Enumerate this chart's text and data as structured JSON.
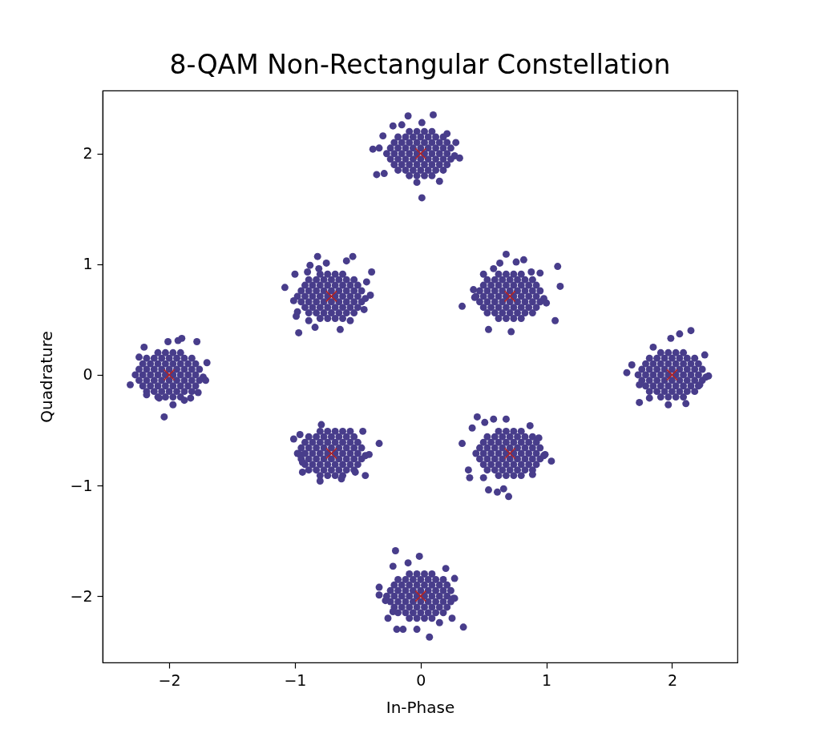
{
  "chart_data": {
    "type": "scatter",
    "title": "8-QAM Non-Rectangular Constellation",
    "xlabel": "In-Phase",
    "ylabel": "Quadrature",
    "xlim": [
      -2.53,
      2.52
    ],
    "ylim": [
      -2.6,
      2.57
    ],
    "xticks": [
      -2,
      -1,
      0,
      1,
      2
    ],
    "yticks": [
      -2,
      -1,
      0,
      1,
      2
    ],
    "marker": "circle",
    "series": [
      {
        "color": "#483d8b",
        "x": [
          -0.09,
          -0.03,
          0.03,
          0.09,
          -0.18,
          -0.12,
          -0.06,
          0,
          0.06,
          0.12,
          0.18,
          -0.21,
          -0.15,
          -0.09,
          -0.03,
          0.03,
          0.09,
          0.15,
          0.21,
          -0.24,
          -0.18,
          -0.12,
          -0.06,
          0,
          0.06,
          0.12,
          0.18,
          0.24,
          -0.21,
          -0.15,
          -0.09,
          -0.03,
          0.03,
          0.09,
          0.15,
          0.21,
          -0.24,
          -0.18,
          -0.12,
          -0.06,
          0,
          0.06,
          0.12,
          0.18,
          0.24,
          -0.21,
          -0.15,
          -0.09,
          -0.03,
          0.03,
          0.09,
          0.15,
          0.21,
          -0.18,
          -0.12,
          -0.06,
          0,
          0.06,
          0.12,
          0.18,
          -0.09,
          -0.03,
          0.03,
          0.09,
          -0.27,
          0.27,
          -0.1,
          0.1,
          0.01,
          -0.22,
          -0.15,
          -0.3,
          -0.38,
          -0.33,
          0.21,
          0.28,
          0.31,
          -0.35,
          -0.29,
          -0.03,
          0.01,
          0.15
        ],
        "values": [
          2.2,
          2.2,
          2.2,
          2.2,
          2.15,
          2.15,
          2.15,
          2.15,
          2.15,
          2.15,
          2.15,
          2.1,
          2.1,
          2.1,
          2.1,
          2.1,
          2.1,
          2.1,
          2.1,
          2.05,
          2.05,
          2.05,
          2.05,
          2.05,
          2.05,
          2.05,
          2.05,
          2.05,
          2,
          2,
          2,
          2,
          2,
          2,
          2,
          2,
          1.95,
          1.95,
          1.95,
          1.95,
          1.95,
          1.95,
          1.95,
          1.95,
          1.95,
          1.9,
          1.9,
          1.9,
          1.9,
          1.9,
          1.9,
          1.9,
          1.9,
          1.85,
          1.85,
          1.85,
          1.85,
          1.85,
          1.85,
          1.85,
          1.8,
          1.8,
          1.8,
          1.8,
          2,
          1.98,
          2.34,
          2.35,
          2.28,
          2.25,
          2.26,
          2.16,
          2.04,
          2.05,
          2.18,
          2.1,
          1.96,
          1.81,
          1.82,
          1.74,
          1.6,
          1.75
        ]
      },
      {
        "color": "#483d8b",
        "x": [
          -0.8,
          -0.74,
          -0.68,
          -0.62,
          -0.89,
          -0.83,
          -0.77,
          -0.71,
          -0.65,
          -0.59,
          -0.53,
          -0.92,
          -0.86,
          -0.8,
          -0.74,
          -0.68,
          -0.62,
          -0.56,
          -0.5,
          -0.95,
          -0.89,
          -0.83,
          -0.77,
          -0.71,
          -0.65,
          -0.59,
          -0.53,
          -0.47,
          -0.92,
          -0.86,
          -0.8,
          -0.74,
          -0.68,
          -0.62,
          -0.56,
          -0.5,
          -0.95,
          -0.89,
          -0.83,
          -0.77,
          -0.71,
          -0.65,
          -0.59,
          -0.53,
          -0.47,
          -0.92,
          -0.86,
          -0.8,
          -0.74,
          -0.68,
          -0.62,
          -0.56,
          -0.5,
          -0.89,
          -0.83,
          -0.77,
          -0.71,
          -0.65,
          -0.59,
          -0.53,
          -0.8,
          -0.74,
          -0.68,
          -0.62,
          -0.98,
          -0.44,
          -0.82,
          -0.75,
          -0.54,
          -0.59,
          -0.88,
          -0.81,
          -0.9,
          -1.0,
          -0.39,
          -1.08,
          -0.43,
          -0.4,
          -1.01,
          -0.45,
          -0.98,
          -0.99,
          -0.56,
          -0.89,
          -0.84,
          -0.64,
          -0.97
        ],
        "values": [
          0.91,
          0.91,
          0.91,
          0.91,
          0.86,
          0.86,
          0.86,
          0.86,
          0.86,
          0.86,
          0.86,
          0.81,
          0.81,
          0.81,
          0.81,
          0.81,
          0.81,
          0.81,
          0.81,
          0.76,
          0.76,
          0.76,
          0.76,
          0.76,
          0.76,
          0.76,
          0.76,
          0.76,
          0.71,
          0.71,
          0.71,
          0.71,
          0.71,
          0.71,
          0.71,
          0.71,
          0.66,
          0.66,
          0.66,
          0.66,
          0.66,
          0.66,
          0.66,
          0.66,
          0.66,
          0.61,
          0.61,
          0.61,
          0.61,
          0.61,
          0.61,
          0.61,
          0.61,
          0.56,
          0.56,
          0.56,
          0.56,
          0.56,
          0.56,
          0.56,
          0.51,
          0.51,
          0.51,
          0.51,
          0.71,
          0.69,
          1.07,
          1.01,
          1.07,
          1.03,
          0.99,
          0.96,
          0.93,
          0.91,
          0.93,
          0.79,
          0.84,
          0.72,
          0.67,
          0.59,
          0.57,
          0.53,
          0.49,
          0.49,
          0.43,
          0.41,
          0.38
        ]
      },
      {
        "color": "#483d8b",
        "x": [
          0.62,
          0.68,
          0.74,
          0.8,
          0.53,
          0.59,
          0.65,
          0.71,
          0.77,
          0.83,
          0.89,
          0.5,
          0.56,
          0.62,
          0.68,
          0.74,
          0.8,
          0.86,
          0.92,
          0.47,
          0.53,
          0.59,
          0.65,
          0.71,
          0.77,
          0.83,
          0.89,
          0.95,
          0.5,
          0.56,
          0.62,
          0.68,
          0.74,
          0.8,
          0.86,
          0.92,
          0.47,
          0.53,
          0.59,
          0.65,
          0.71,
          0.77,
          0.83,
          0.89,
          0.95,
          0.5,
          0.56,
          0.62,
          0.68,
          0.74,
          0.8,
          0.86,
          0.92,
          0.53,
          0.59,
          0.65,
          0.71,
          0.77,
          0.83,
          0.89,
          0.62,
          0.68,
          0.74,
          0.8,
          0.44,
          0.98,
          0.68,
          0.82,
          0.76,
          0.63,
          0.58,
          0.5,
          1.09,
          0.95,
          0.88,
          0.42,
          0.33,
          1.11,
          1.0,
          1.07,
          0.54,
          0.72,
          0.43
        ],
        "values": [
          0.91,
          0.91,
          0.91,
          0.91,
          0.86,
          0.86,
          0.86,
          0.86,
          0.86,
          0.86,
          0.86,
          0.81,
          0.81,
          0.81,
          0.81,
          0.81,
          0.81,
          0.81,
          0.81,
          0.76,
          0.76,
          0.76,
          0.76,
          0.76,
          0.76,
          0.76,
          0.76,
          0.76,
          0.71,
          0.71,
          0.71,
          0.71,
          0.71,
          0.71,
          0.71,
          0.71,
          0.66,
          0.66,
          0.66,
          0.66,
          0.66,
          0.66,
          0.66,
          0.66,
          0.66,
          0.61,
          0.61,
          0.61,
          0.61,
          0.61,
          0.61,
          0.61,
          0.61,
          0.56,
          0.56,
          0.56,
          0.56,
          0.56,
          0.56,
          0.56,
          0.51,
          0.51,
          0.51,
          0.51,
          0.71,
          0.69,
          1.09,
          1.04,
          1.02,
          1.01,
          0.96,
          0.91,
          0.98,
          0.92,
          0.93,
          0.77,
          0.62,
          0.8,
          0.65,
          0.49,
          0.41,
          0.39,
          0.7
        ]
      },
      {
        "color": "#483d8b",
        "x": [
          -2.09,
          -2.03,
          -1.97,
          -1.91,
          -2.18,
          -2.12,
          -2.06,
          -2,
          -1.94,
          -1.88,
          -1.82,
          -2.21,
          -2.15,
          -2.09,
          -2.03,
          -1.97,
          -1.91,
          -1.85,
          -1.79,
          -2.24,
          -2.18,
          -2.12,
          -2.06,
          -2,
          -1.94,
          -1.88,
          -1.82,
          -1.76,
          -2.21,
          -2.15,
          -2.09,
          -2.03,
          -1.97,
          -1.91,
          -1.85,
          -1.79,
          -2.24,
          -2.18,
          -2.12,
          -2.06,
          -2,
          -1.94,
          -1.88,
          -1.82,
          -1.76,
          -2.21,
          -2.15,
          -2.09,
          -2.03,
          -1.97,
          -1.91,
          -1.85,
          -1.79,
          -2.18,
          -2.12,
          -2.06,
          -2,
          -1.94,
          -1.88,
          -1.82,
          -2.09,
          -2.03,
          -1.97,
          -1.91,
          -2.27,
          -1.73,
          -1.9,
          -1.93,
          -1.78,
          -2.01,
          -2.2,
          -2.24,
          -1.7,
          -2.31,
          -1.71,
          -2.18,
          -1.77,
          -1.97,
          -1.88,
          -2.04,
          -1.83,
          -2.08
        ],
        "values": [
          0.2,
          0.2,
          0.2,
          0.2,
          0.15,
          0.15,
          0.15,
          0.15,
          0.15,
          0.15,
          0.15,
          0.1,
          0.1,
          0.1,
          0.1,
          0.1,
          0.1,
          0.1,
          0.1,
          0.05,
          0.05,
          0.05,
          0.05,
          0.05,
          0.05,
          0.05,
          0.05,
          0.05,
          0,
          0,
          0,
          0,
          0,
          0,
          0,
          0,
          -0.05,
          -0.05,
          -0.05,
          -0.05,
          -0.05,
          -0.05,
          -0.05,
          -0.05,
          -0.05,
          -0.1,
          -0.1,
          -0.1,
          -0.1,
          -0.1,
          -0.1,
          -0.1,
          -0.1,
          -0.15,
          -0.15,
          -0.15,
          -0.15,
          -0.15,
          -0.15,
          -0.15,
          -0.2,
          -0.2,
          -0.2,
          -0.2,
          0,
          -0.02,
          0.33,
          0.31,
          0.3,
          0.3,
          0.25,
          0.16,
          0.11,
          -0.09,
          -0.05,
          -0.18,
          -0.16,
          -0.27,
          -0.23,
          -0.38,
          -0.21,
          -0.21
        ]
      },
      {
        "color": "#483d8b",
        "x": [
          1.91,
          1.97,
          2.03,
          2.09,
          1.82,
          1.88,
          1.94,
          2,
          2.06,
          2.12,
          2.18,
          1.79,
          1.85,
          1.91,
          1.97,
          2.03,
          2.09,
          2.15,
          2.21,
          1.76,
          1.82,
          1.88,
          1.94,
          2,
          2.06,
          2.12,
          2.18,
          2.24,
          1.79,
          1.85,
          1.91,
          1.97,
          2.03,
          2.09,
          2.15,
          2.21,
          1.76,
          1.82,
          1.88,
          1.94,
          2,
          2.06,
          2.12,
          2.18,
          2.24,
          1.79,
          1.85,
          1.91,
          1.97,
          2.03,
          2.09,
          2.15,
          2.21,
          1.82,
          1.88,
          1.94,
          2,
          2.06,
          2.12,
          2.18,
          1.91,
          1.97,
          2.03,
          2.09,
          1.73,
          2.27,
          2.15,
          2.06,
          1.99,
          1.85,
          2.26,
          1.68,
          1.64,
          2.29,
          1.74,
          1.74,
          1.97,
          2.11,
          2.22,
          1.82
        ],
        "values": [
          0.2,
          0.2,
          0.2,
          0.2,
          0.15,
          0.15,
          0.15,
          0.15,
          0.15,
          0.15,
          0.15,
          0.1,
          0.1,
          0.1,
          0.1,
          0.1,
          0.1,
          0.1,
          0.1,
          0.05,
          0.05,
          0.05,
          0.05,
          0.05,
          0.05,
          0.05,
          0.05,
          0.05,
          0,
          0,
          0,
          0,
          0,
          0,
          0,
          0,
          -0.05,
          -0.05,
          -0.05,
          -0.05,
          -0.05,
          -0.05,
          -0.05,
          -0.05,
          -0.05,
          -0.1,
          -0.1,
          -0.1,
          -0.1,
          -0.1,
          -0.1,
          -0.1,
          -0.1,
          -0.15,
          -0.15,
          -0.15,
          -0.15,
          -0.15,
          -0.15,
          -0.15,
          -0.2,
          -0.2,
          -0.2,
          -0.2,
          0,
          -0.02,
          0.4,
          0.37,
          0.33,
          0.25,
          0.18,
          0.09,
          0.02,
          -0.01,
          -0.09,
          -0.25,
          -0.27,
          -0.26,
          -0.09,
          -0.21
        ]
      },
      {
        "color": "#483d8b",
        "x": [
          -0.8,
          -0.74,
          -0.68,
          -0.62,
          -0.89,
          -0.83,
          -0.77,
          -0.71,
          -0.65,
          -0.59,
          -0.53,
          -0.92,
          -0.86,
          -0.8,
          -0.74,
          -0.68,
          -0.62,
          -0.56,
          -0.5,
          -0.95,
          -0.89,
          -0.83,
          -0.77,
          -0.71,
          -0.65,
          -0.59,
          -0.53,
          -0.47,
          -0.92,
          -0.86,
          -0.8,
          -0.74,
          -0.68,
          -0.62,
          -0.56,
          -0.5,
          -0.95,
          -0.89,
          -0.83,
          -0.77,
          -0.71,
          -0.65,
          -0.59,
          -0.53,
          -0.47,
          -0.92,
          -0.86,
          -0.8,
          -0.74,
          -0.68,
          -0.62,
          -0.56,
          -0.5,
          -0.89,
          -0.83,
          -0.77,
          -0.71,
          -0.65,
          -0.59,
          -0.53,
          -0.8,
          -0.74,
          -0.68,
          -0.62,
          -0.98,
          -0.44,
          -1.01,
          -0.96,
          -0.79,
          -0.46,
          -0.33,
          -0.41,
          -0.44,
          -0.94,
          -0.8,
          -0.63,
          -0.52,
          -0.96,
          -0.94,
          -0.56
        ],
        "values": [
          -0.51,
          -0.51,
          -0.51,
          -0.51,
          -0.56,
          -0.56,
          -0.56,
          -0.56,
          -0.56,
          -0.56,
          -0.56,
          -0.61,
          -0.61,
          -0.61,
          -0.61,
          -0.61,
          -0.61,
          -0.61,
          -0.61,
          -0.66,
          -0.66,
          -0.66,
          -0.66,
          -0.66,
          -0.66,
          -0.66,
          -0.66,
          -0.66,
          -0.71,
          -0.71,
          -0.71,
          -0.71,
          -0.71,
          -0.71,
          -0.71,
          -0.71,
          -0.76,
          -0.76,
          -0.76,
          -0.76,
          -0.76,
          -0.76,
          -0.76,
          -0.76,
          -0.76,
          -0.81,
          -0.81,
          -0.81,
          -0.81,
          -0.81,
          -0.81,
          -0.81,
          -0.81,
          -0.86,
          -0.86,
          -0.86,
          -0.86,
          -0.86,
          -0.86,
          -0.86,
          -0.91,
          -0.91,
          -0.91,
          -0.91,
          -0.71,
          -0.73,
          -0.58,
          -0.54,
          -0.45,
          -0.51,
          -0.62,
          -0.72,
          -0.91,
          -0.88,
          -0.96,
          -0.94,
          -0.88,
          -0.72,
          -0.79,
          -0.51
        ]
      },
      {
        "color": "#483d8b",
        "x": [
          0.62,
          0.68,
          0.74,
          0.8,
          0.53,
          0.59,
          0.65,
          0.71,
          0.77,
          0.83,
          0.89,
          0.5,
          0.56,
          0.62,
          0.68,
          0.74,
          0.8,
          0.86,
          0.92,
          0.47,
          0.53,
          0.59,
          0.65,
          0.71,
          0.77,
          0.83,
          0.89,
          0.95,
          0.5,
          0.56,
          0.62,
          0.68,
          0.74,
          0.8,
          0.86,
          0.92,
          0.47,
          0.53,
          0.59,
          0.65,
          0.71,
          0.77,
          0.83,
          0.89,
          0.95,
          0.5,
          0.56,
          0.62,
          0.68,
          0.74,
          0.8,
          0.86,
          0.92,
          0.53,
          0.59,
          0.65,
          0.71,
          0.77,
          0.83,
          0.89,
          0.62,
          0.68,
          0.74,
          0.8,
          0.44,
          0.98,
          0.45,
          0.51,
          0.58,
          0.68,
          0.41,
          0.87,
          0.33,
          0.94,
          0.99,
          1.04,
          0.38,
          0.39,
          0.5,
          0.54,
          0.61,
          0.66,
          0.7,
          0.89
        ],
        "values": [
          -0.51,
          -0.51,
          -0.51,
          -0.51,
          -0.56,
          -0.56,
          -0.56,
          -0.56,
          -0.56,
          -0.56,
          -0.56,
          -0.61,
          -0.61,
          -0.61,
          -0.61,
          -0.61,
          -0.61,
          -0.61,
          -0.61,
          -0.66,
          -0.66,
          -0.66,
          -0.66,
          -0.66,
          -0.66,
          -0.66,
          -0.66,
          -0.66,
          -0.71,
          -0.71,
          -0.71,
          -0.71,
          -0.71,
          -0.71,
          -0.71,
          -0.71,
          -0.76,
          -0.76,
          -0.76,
          -0.76,
          -0.76,
          -0.76,
          -0.76,
          -0.76,
          -0.76,
          -0.81,
          -0.81,
          -0.81,
          -0.81,
          -0.81,
          -0.81,
          -0.81,
          -0.81,
          -0.86,
          -0.86,
          -0.86,
          -0.86,
          -0.86,
          -0.86,
          -0.86,
          -0.91,
          -0.91,
          -0.91,
          -0.91,
          -0.71,
          -0.73,
          -0.38,
          -0.43,
          -0.4,
          -0.4,
          -0.48,
          -0.46,
          -0.62,
          -0.57,
          -0.72,
          -0.78,
          -0.86,
          -0.93,
          -0.93,
          -1.04,
          -1.06,
          -1.03,
          -1.1,
          -0.9
        ]
      },
      {
        "color": "#483d8b",
        "x": [
          -0.09,
          -0.03,
          0.03,
          0.09,
          -0.18,
          -0.12,
          -0.06,
          0,
          0.06,
          0.12,
          0.18,
          -0.21,
          -0.15,
          -0.09,
          -0.03,
          0.03,
          0.09,
          0.15,
          0.21,
          -0.24,
          -0.18,
          -0.12,
          -0.06,
          0,
          0.06,
          0.12,
          0.18,
          0.24,
          -0.21,
          -0.15,
          -0.09,
          -0.03,
          0.03,
          0.09,
          0.15,
          0.21,
          -0.24,
          -0.18,
          -0.12,
          -0.06,
          0,
          0.06,
          0.12,
          0.18,
          0.24,
          -0.21,
          -0.15,
          -0.09,
          -0.03,
          0.03,
          0.09,
          0.15,
          0.21,
          -0.18,
          -0.12,
          -0.06,
          0,
          0.06,
          0.12,
          0.18,
          -0.09,
          -0.03,
          0.03,
          0.09,
          -0.27,
          0.27,
          -0.2,
          -0.01,
          -0.1,
          -0.22,
          0.2,
          0.27,
          -0.33,
          -0.33,
          0.26,
          -0.28,
          -0.22,
          -0.26,
          0.25,
          0.15,
          0.34,
          -0.19,
          -0.03,
          0.07,
          -0.14
        ],
        "values": [
          -1.8,
          -1.8,
          -1.8,
          -1.8,
          -1.85,
          -1.85,
          -1.85,
          -1.85,
          -1.85,
          -1.85,
          -1.85,
          -1.9,
          -1.9,
          -1.9,
          -1.9,
          -1.9,
          -1.9,
          -1.9,
          -1.9,
          -1.95,
          -1.95,
          -1.95,
          -1.95,
          -1.95,
          -1.95,
          -1.95,
          -1.95,
          -1.95,
          -2,
          -2,
          -2,
          -2,
          -2,
          -2,
          -2,
          -2,
          -2.05,
          -2.05,
          -2.05,
          -2.05,
          -2.05,
          -2.05,
          -2.05,
          -2.05,
          -2.05,
          -2.1,
          -2.1,
          -2.1,
          -2.1,
          -2.1,
          -2.1,
          -2.1,
          -2.1,
          -2.15,
          -2.15,
          -2.15,
          -2.15,
          -2.15,
          -2.15,
          -2.15,
          -2.2,
          -2.2,
          -2.2,
          -2.2,
          -2,
          -2.02,
          -1.59,
          -1.64,
          -1.7,
          -1.73,
          -1.75,
          -1.84,
          -1.92,
          -1.99,
          -2.02,
          -2.04,
          -2.14,
          -2.2,
          -2.2,
          -2.24,
          -2.28,
          -2.3,
          -2.3,
          -2.37,
          -2.3
        ]
      },
      {
        "color": "#b22222",
        "marker": "cross",
        "x": [
          0,
          -0.71,
          0.71,
          -2,
          2,
          -0.71,
          0.71,
          0
        ],
        "values": [
          2,
          0.71,
          0.71,
          0,
          0,
          -0.71,
          -0.71,
          -2
        ]
      }
    ]
  }
}
